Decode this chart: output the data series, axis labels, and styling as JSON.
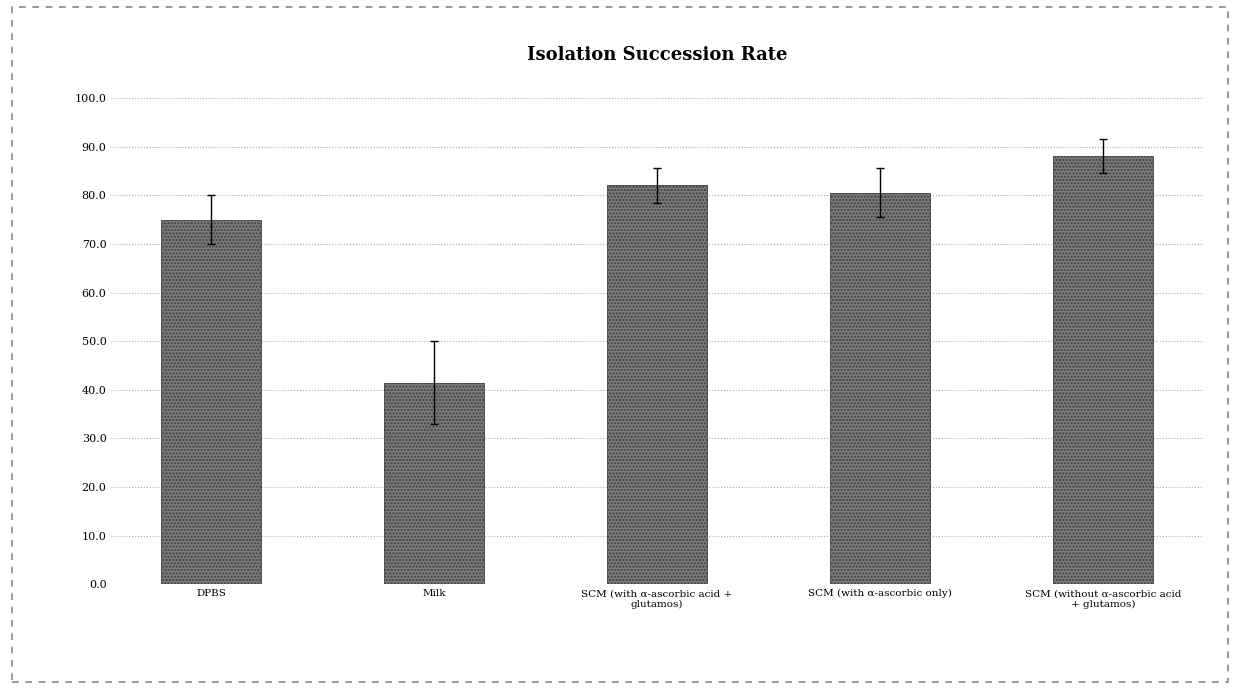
{
  "title": "Isolation Succession Rate",
  "categories": [
    "DPBS",
    "Milk",
    "SCM (with α-ascorbic acid +\nglutamos)",
    "SCM (with α-ascorbic only)",
    "SCM (without α-ascorbic acid\n+ glutamos)"
  ],
  "values": [
    75.0,
    41.5,
    82.0,
    80.5,
    88.0
  ],
  "errors": [
    5.0,
    8.5,
    3.5,
    5.0,
    3.5
  ],
  "bar_color": "#7a7a7a",
  "bar_hatch": ".....",
  "ylim": [
    0,
    105
  ],
  "ytick_values": [
    0.0,
    10.0,
    20.0,
    30.0,
    40.0,
    50.0,
    60.0,
    70.0,
    80.0,
    90.0,
    100.0
  ],
  "ytick_labels": [
    "0.0",
    "10.0",
    "20.0",
    "30.0",
    "40.0",
    "50.0",
    "60.0",
    "70.0",
    "80.0",
    "90.0",
    "100.0"
  ],
  "title_fontsize": 13,
  "tick_fontsize": 8,
  "xlabel_fontsize": 7.5,
  "background_color": "#ffffff",
  "plot_bg_color": "#ffffff",
  "grid_color": "#aaaaaa",
  "border_color": "#888888",
  "bar_edge_color": "#404040"
}
